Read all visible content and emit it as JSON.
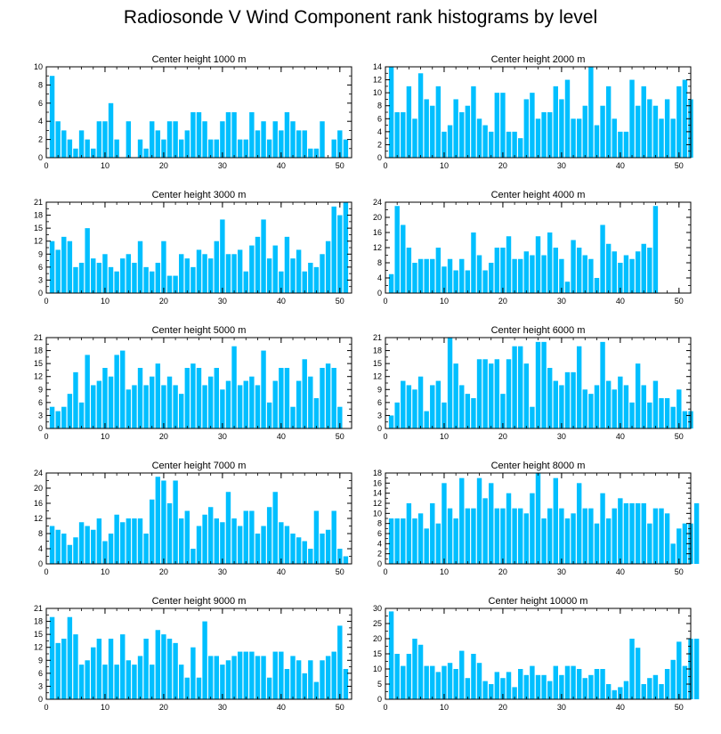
{
  "title": "Radiosonde V Wind Component rank histograms by level",
  "colors": {
    "bar": "#00bfff",
    "axis": "#000000",
    "background": "#ffffff"
  },
  "chart_data": [
    {
      "type": "bar",
      "title": "Center height 1000 m",
      "ylim": [
        0,
        10
      ],
      "yticks": [
        0,
        2,
        4,
        6,
        8,
        10
      ],
      "xlim": [
        0,
        52
      ],
      "xticks": [
        0,
        10,
        20,
        30,
        40,
        50
      ],
      "values": [
        9,
        4,
        3,
        2,
        1,
        3,
        2,
        1,
        4,
        4,
        6,
        2,
        0,
        4,
        0,
        2,
        1,
        4,
        3,
        2,
        4,
        4,
        2,
        3,
        5,
        5,
        4,
        2,
        2,
        4,
        5,
        5,
        2,
        2,
        5,
        3,
        4,
        2,
        4,
        3,
        5,
        4,
        3,
        3,
        1,
        1,
        4,
        0,
        2,
        3,
        2
      ]
    },
    {
      "type": "bar",
      "title": "Center height 2000 m",
      "ylim": [
        0,
        14
      ],
      "yticks": [
        0,
        2,
        4,
        6,
        8,
        10,
        12,
        14
      ],
      "xlim": [
        0,
        52
      ],
      "xticks": [
        0,
        10,
        20,
        30,
        40,
        50
      ],
      "values": [
        14,
        7,
        7,
        11,
        6,
        13,
        9,
        8,
        11,
        4,
        5,
        9,
        7,
        8,
        11,
        6,
        5,
        4,
        10,
        10,
        4,
        4,
        3,
        9,
        10,
        6,
        7,
        7,
        11,
        9,
        12,
        6,
        6,
        8,
        14,
        5,
        8,
        11,
        6,
        4,
        4,
        12,
        8,
        11,
        9,
        8,
        6,
        9,
        6,
        11,
        12,
        9
      ]
    },
    {
      "type": "bar",
      "title": "Center height 3000 m",
      "ylim": [
        0,
        21
      ],
      "yticks": [
        0,
        3,
        6,
        9,
        12,
        15,
        18,
        21
      ],
      "xlim": [
        0,
        52
      ],
      "xticks": [
        0,
        10,
        20,
        30,
        40,
        50
      ],
      "values": [
        12,
        10,
        13,
        12,
        6,
        7,
        15,
        8,
        7,
        9,
        6,
        5,
        8,
        9,
        7,
        12,
        6,
        5,
        7,
        12,
        4,
        4,
        9,
        8,
        6,
        10,
        9,
        8,
        12,
        17,
        9,
        9,
        10,
        5,
        11,
        13,
        17,
        8,
        11,
        5,
        13,
        8,
        10,
        5,
        7,
        6,
        9,
        12,
        20,
        18,
        21
      ]
    },
    {
      "type": "bar",
      "title": "Center height 4000 m",
      "ylim": [
        0,
        24
      ],
      "yticks": [
        0,
        4,
        8,
        12,
        16,
        20,
        24
      ],
      "xlim": [
        0,
        52
      ],
      "xticks": [
        0,
        10,
        20,
        30,
        40,
        50
      ],
      "values": [
        5,
        23,
        18,
        12,
        8,
        9,
        9,
        9,
        12,
        7,
        9,
        6,
        9,
        6,
        16,
        10,
        6,
        8,
        12,
        12,
        15,
        9,
        9,
        11,
        10,
        15,
        10,
        16,
        12,
        9,
        3,
        14,
        12,
        10,
        9,
        4,
        18,
        13,
        11,
        8,
        10,
        9,
        11,
        13,
        12,
        23
      ]
    },
    {
      "type": "bar",
      "title": "Center height 5000 m",
      "ylim": [
        0,
        21
      ],
      "yticks": [
        0,
        3,
        6,
        9,
        12,
        15,
        18,
        21
      ],
      "xlim": [
        0,
        52
      ],
      "xticks": [
        0,
        10,
        20,
        30,
        40,
        50
      ],
      "values": [
        5,
        4,
        5,
        8,
        13,
        6,
        17,
        10,
        11,
        14,
        12,
        17,
        18,
        9,
        10,
        14,
        10,
        12,
        15,
        10,
        12,
        10,
        8,
        14,
        15,
        14,
        10,
        12,
        14,
        9,
        11,
        19,
        10,
        11,
        12,
        10,
        18,
        6,
        11,
        14,
        14,
        5,
        11,
        16,
        12,
        7,
        14,
        15,
        14,
        5
      ]
    },
    {
      "type": "bar",
      "title": "Center height 6000 m",
      "ylim": [
        0,
        21
      ],
      "yticks": [
        0,
        3,
        6,
        9,
        12,
        15,
        18,
        21
      ],
      "xlim": [
        0,
        52
      ],
      "xticks": [
        0,
        10,
        20,
        30,
        40,
        50
      ],
      "values": [
        3,
        6,
        11,
        10,
        9,
        12,
        4,
        10,
        11,
        6,
        21,
        15,
        10,
        8,
        7,
        16,
        16,
        15,
        16,
        8,
        16,
        19,
        19,
        15,
        5,
        20,
        20,
        14,
        11,
        10,
        13,
        13,
        19,
        9,
        8,
        10,
        20,
        11,
        9,
        12,
        10,
        6,
        15,
        10,
        6,
        11,
        7,
        7,
        5,
        9,
        4,
        4
      ]
    },
    {
      "type": "bar",
      "title": "Center height 7000 m",
      "ylim": [
        0,
        24
      ],
      "yticks": [
        0,
        4,
        8,
        12,
        16,
        20,
        24
      ],
      "xlim": [
        0,
        52
      ],
      "xticks": [
        0,
        10,
        20,
        30,
        40,
        50
      ],
      "values": [
        10,
        9,
        8,
        5,
        7,
        11,
        10,
        9,
        12,
        6,
        8,
        13,
        11,
        12,
        12,
        12,
        8,
        17,
        23,
        22,
        16,
        22,
        12,
        14,
        4,
        10,
        13,
        15,
        12,
        11,
        19,
        12,
        10,
        14,
        14,
        8,
        10,
        15,
        19,
        11,
        10,
        8,
        7,
        6,
        4,
        14,
        8,
        9,
        14,
        4,
        2
      ]
    },
    {
      "type": "bar",
      "title": "Center height 8000 m",
      "ylim": [
        0,
        18
      ],
      "yticks": [
        0,
        2,
        4,
        6,
        8,
        10,
        12,
        14,
        16,
        18
      ],
      "xlim": [
        0,
        52
      ],
      "xticks": [
        0,
        10,
        20,
        30,
        40,
        50
      ],
      "values": [
        9,
        9,
        9,
        12,
        9,
        10,
        7,
        12,
        8,
        16,
        11,
        9,
        17,
        11,
        11,
        17,
        13,
        16,
        11,
        11,
        14,
        11,
        11,
        10,
        14,
        18,
        9,
        11,
        17,
        11,
        9,
        10,
        16,
        11,
        11,
        8,
        14,
        9,
        11,
        13,
        12,
        12,
        12,
        12,
        8,
        11,
        11,
        10,
        4,
        7,
        8,
        8,
        12
      ]
    },
    {
      "type": "bar",
      "title": "Center height 9000 m",
      "ylim": [
        0,
        21
      ],
      "yticks": [
        0,
        3,
        6,
        9,
        12,
        15,
        18,
        21
      ],
      "xlim": [
        0,
        52
      ],
      "xticks": [
        0,
        10,
        20,
        30,
        40,
        50
      ],
      "values": [
        19,
        13,
        14,
        19,
        15,
        8,
        9,
        12,
        14,
        8,
        14,
        8,
        15,
        9,
        8,
        10,
        14,
        8,
        16,
        15,
        14,
        13,
        8,
        5,
        12,
        5,
        18,
        10,
        10,
        8,
        9,
        10,
        11,
        11,
        11,
        10,
        10,
        5,
        11,
        11,
        7,
        10,
        9,
        6,
        9,
        4,
        9,
        10,
        11,
        17,
        7
      ]
    },
    {
      "type": "bar",
      "title": "Center height 10000 m",
      "ylim": [
        0,
        30
      ],
      "yticks": [
        0,
        5,
        10,
        15,
        20,
        25,
        30
      ],
      "xlim": [
        0,
        52
      ],
      "xticks": [
        0,
        10,
        20,
        30,
        40,
        50
      ],
      "values": [
        29,
        15,
        11,
        15,
        20,
        18,
        11,
        11,
        9,
        11,
        12,
        10,
        16,
        7,
        15,
        12,
        6,
        5,
        9,
        7,
        9,
        4,
        10,
        8,
        11,
        8,
        8,
        6,
        11,
        8,
        11,
        11,
        10,
        7,
        8,
        10,
        10,
        5,
        3,
        4,
        6,
        20,
        17,
        5,
        7,
        8,
        5,
        10,
        13,
        19,
        11,
        20,
        20
      ]
    }
  ]
}
